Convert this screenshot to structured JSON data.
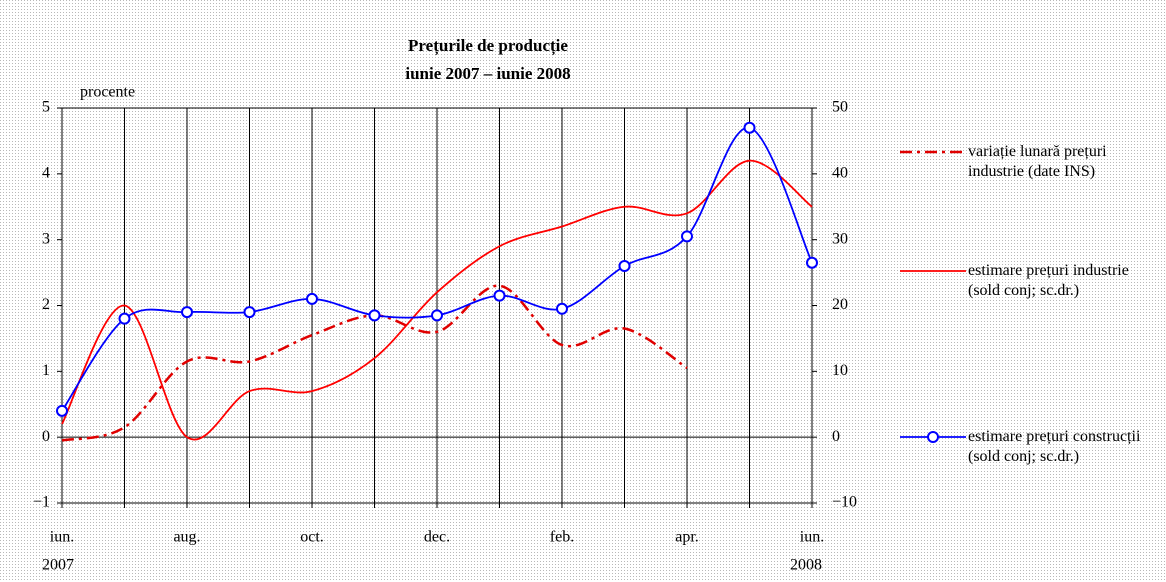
{
  "chart_data": {
    "type": "line",
    "title": "Prețurile de producție",
    "subtitle": "iunie 2007 – iunie 2008",
    "ylabel": "procente",
    "categories": [
      "iun.",
      null,
      "aug.",
      null,
      "oct.",
      null,
      "dec.",
      null,
      "feb.",
      null,
      "apr.",
      null,
      "iun."
    ],
    "year_labels": [
      "2007",
      "2008"
    ],
    "ylim": [
      -1,
      5
    ],
    "yticks": [
      {
        "value": -1,
        "label": "−1"
      },
      0,
      1,
      2,
      3,
      4,
      5
    ],
    "y2lim": [
      -10,
      50
    ],
    "y2ticks": [
      {
        "value": -10,
        "label": "−10"
      },
      0,
      10,
      20,
      30,
      40,
      50
    ],
    "series": [
      {
        "name": "variație lunară prețuri industrie (date INS)",
        "color": "#e00000",
        "style": "dash-dot",
        "axis": "y",
        "values": [
          -0.05,
          0.15,
          1.15,
          1.15,
          1.55,
          1.85,
          1.6,
          2.3,
          1.4,
          1.65,
          1.05,
          null,
          null
        ]
      },
      {
        "name": "estimare prețuri industrie (sold conj; sc.dr.)",
        "color": "#ff0000",
        "style": "solid",
        "axis": "y2",
        "values": [
          2,
          20,
          0,
          7,
          7,
          12,
          22,
          29,
          32,
          35,
          34,
          42,
          35
        ]
      },
      {
        "name": "estimare prețuri construcții (sold conj; sc.dr.)",
        "color": "#0000ff",
        "style": "solid",
        "markers": true,
        "axis": "y2",
        "values": [
          4,
          18,
          19,
          19,
          21,
          18.5,
          18.5,
          21.5,
          19.5,
          26,
          30.5,
          47,
          26.5
        ]
      }
    ]
  }
}
